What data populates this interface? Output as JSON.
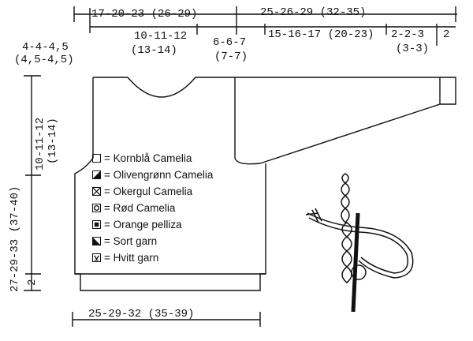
{
  "dimensions": {
    "top_left": "17-20-23 (26-29)",
    "top_right": "25-26-29 (32-35)",
    "shoulder_drop_line1": "4-4-4,5",
    "shoulder_drop_line2": "(4,5-4,5)",
    "neck_width_line1": "10-11-12",
    "neck_width_line2": "(13-14)",
    "armhole_line1": "6-6-7",
    "armhole_line2": "(7-7)",
    "sleeve_upper": "15-16-17 (20-23)",
    "cuff_line1": "2-2-3",
    "cuff_line2": "(3-3)",
    "cuff_edge": "2",
    "body_length": "27-29-33 (37-40)",
    "armhole_depth_line1": "10-11-12",
    "armhole_depth_line2": "(13-14)",
    "rib_height": "2",
    "bottom_width": "25-29-32 (35-39)"
  },
  "legend": [
    {
      "label": "= Kornblå Camelia",
      "symbol": "empty-square-icon"
    },
    {
      "label": "= Olivengrønn Camelia",
      "symbol": "half-diagonal-square-icon"
    },
    {
      "label": "= Okergul Camelia",
      "symbol": "x-square-icon"
    },
    {
      "label": "= Rød Camelia",
      "symbol": "circle-square-icon"
    },
    {
      "label": "= Orange pelliza",
      "symbol": "filled-square-icon"
    },
    {
      "label": "= Sort garn",
      "symbol": "black-triangle-square-icon"
    },
    {
      "label": "= Hvitt garn",
      "symbol": "v-square-icon"
    }
  ]
}
